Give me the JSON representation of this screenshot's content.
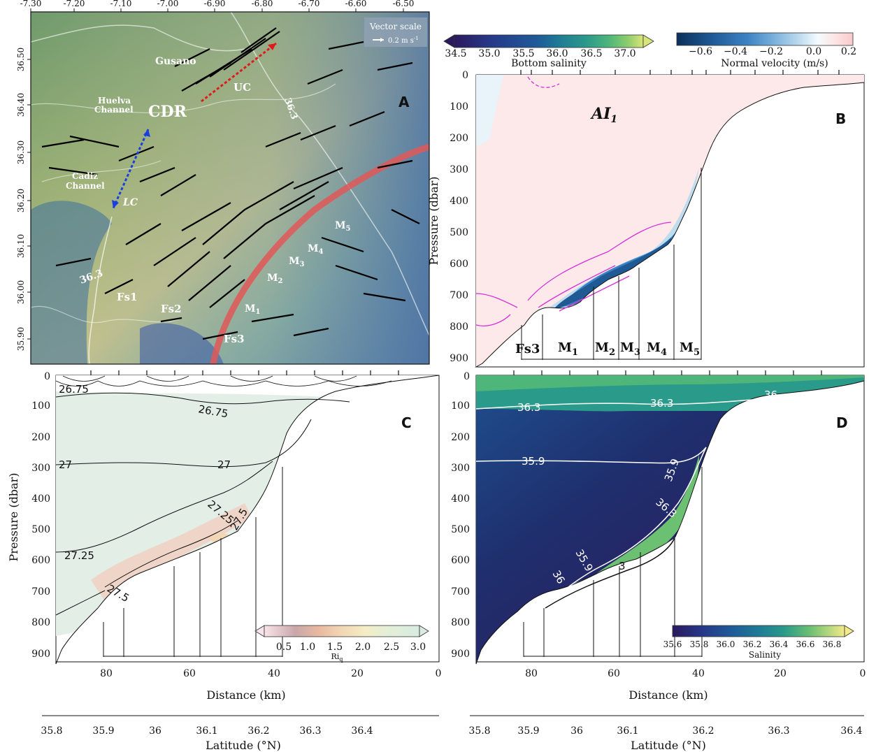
{
  "colors": {
    "salinity_cmap": [
      "#2a1a5e",
      "#263a8a",
      "#1f5c98",
      "#1f7a96",
      "#2a9a8a",
      "#4fb67a",
      "#8fcd6c",
      "#d9e57a"
    ],
    "velocity_cmap": [
      "#0b2f5a",
      "#1f5a95",
      "#3b82c4",
      "#79b0dc",
      "#bfdcef",
      "#f4fbff",
      "#fde4e4",
      "#f8caca"
    ],
    "ri_cmap": [
      "#f8e4ea",
      "#c9a7a9",
      "#e8b9a0",
      "#f2d7b5",
      "#f4edc4",
      "#e3efd8",
      "#d7ebe0"
    ],
    "land_isobath_red": "#e05858",
    "lc_arrow": "#1a3fe0",
    "uc_arrow": "#e01a1a"
  },
  "panel_a": {
    "label": "A",
    "lon_ticks": [
      "-7.30",
      "-7.20",
      "-7.10",
      "-7.00",
      "-6.90",
      "-6.80",
      "-6.70",
      "-6.60",
      "-6.50"
    ],
    "lat_ticks": [
      "36.50",
      "36.40",
      "36.30",
      "36.20",
      "36.10",
      "36.00",
      "35.90"
    ],
    "vector_scale_title": "Vector scale",
    "vector_scale_value": "0.2 m s",
    "vector_scale_exp": "-1",
    "labels": {
      "gusano": "Gusano",
      "huelva": "Huelva",
      "channel1": "Channel",
      "cdr": "CDR",
      "cadiz": "Cadiz",
      "channel2": "Channel",
      "uc": "UC",
      "lc": "LC",
      "iso1": "36.3",
      "iso2": "36.3",
      "fs1": "Fs1",
      "fs2": "Fs2",
      "fs3": "Fs3",
      "m": "M",
      "sub1": "1",
      "sub2": "2",
      "sub3": "3",
      "sub4": "4",
      "sub5": "5"
    }
  },
  "panel_b": {
    "label": "B",
    "sal_ticks": [
      "34.5",
      "35.0",
      "35.5",
      "36.0",
      "36.5",
      "37.0"
    ],
    "sal_title": "Bottom salinity",
    "vel_ticks": [
      "−0.6",
      "−0.4",
      "−0.2",
      "0.0",
      "0.2"
    ],
    "vel_title": "Normal velocity (m/s)",
    "ai": "AI",
    "ai_sub": "1",
    "ylabel": "Pressure (dbar)",
    "mooring_labels": {
      "fs3": "Fs3",
      "m": "M",
      "s1": "1",
      "s2": "2",
      "s3": "3",
      "s4": "4",
      "s5": "5"
    }
  },
  "panel_c": {
    "label": "C",
    "ylabel": "Pressure (dbar)",
    "xlabel": "Distance (km)",
    "contours": {
      "a": "26.75",
      "b": "26.75",
      "c": "27",
      "d": "27",
      "e": "27.25",
      "f": "27.5",
      "g": "27.25",
      "h": "27.5"
    },
    "ri_ticks": [
      "0.5",
      "1.0",
      "1.5",
      "2.0",
      "2.5",
      "3.0"
    ],
    "ri_title": "Ri",
    "ri_sub": "q"
  },
  "panel_d": {
    "label": "D",
    "xlabel": "Distance (km)",
    "contours": {
      "a": "36.3",
      "b": "36.3",
      "c": "36",
      "d": "35.9",
      "e": "35.9",
      "f": "36.3",
      "g": "35.9",
      "h": "36",
      "i": "3"
    },
    "sal_ticks": [
      "35.6",
      "35.8",
      "36.0",
      "36.2",
      "36.4",
      "36.6",
      "36.8"
    ],
    "sal_title": "Salinity"
  },
  "axes": {
    "pressure_ticks": [
      "0",
      "100",
      "200",
      "300",
      "400",
      "500",
      "600",
      "700",
      "800",
      "900"
    ],
    "distance_ticks": [
      "80",
      "60",
      "40",
      "20",
      "0"
    ],
    "latitude_ticks": [
      "35.8",
      "35.9",
      "36",
      "36.1",
      "36.2",
      "36.3",
      "36.4"
    ],
    "latitude_label": "Latitude (°N)"
  },
  "chart_data": [
    {
      "type": "heatmap",
      "panel": "A",
      "description_axes": {
        "xlim": [
          -7.3,
          -6.46
        ],
        "ylim": [
          35.86,
          36.59
        ]
      },
      "x_ticks": [
        -7.3,
        -7.2,
        -7.1,
        -7.0,
        -6.9,
        -6.8,
        -6.7,
        -6.6,
        -6.5
      ],
      "y_ticks": [
        36.5,
        36.4,
        36.3,
        36.2,
        36.1,
        36.0,
        35.9
      ]
    },
    {
      "type": "heatmap",
      "panel": "B",
      "xlim": [
        94,
        0
      ],
      "ylim": [
        930,
        0
      ],
      "colorbars": [
        {
          "title": "Bottom salinity",
          "range": [
            34.5,
            37.3
          ]
        },
        {
          "title": "Normal velocity (m/s)",
          "range": [
            -0.75,
            0.2
          ]
        }
      ]
    },
    {
      "type": "heatmap",
      "panel": "C",
      "xlim": [
        94,
        0
      ],
      "ylim": [
        930,
        0
      ],
      "xlabel": "Distance (km)",
      "ylabel": "Pressure (dbar)",
      "colorbar": {
        "title": "Ri_q",
        "range": [
          0,
          3.2
        ]
      }
    },
    {
      "type": "heatmap",
      "panel": "D",
      "xlim": [
        94,
        0
      ],
      "ylim": [
        930,
        0
      ],
      "xlabel": "Distance (km)",
      "colorbar": {
        "title": "Salinity",
        "range": [
          35.6,
          36.9
        ]
      }
    }
  ]
}
